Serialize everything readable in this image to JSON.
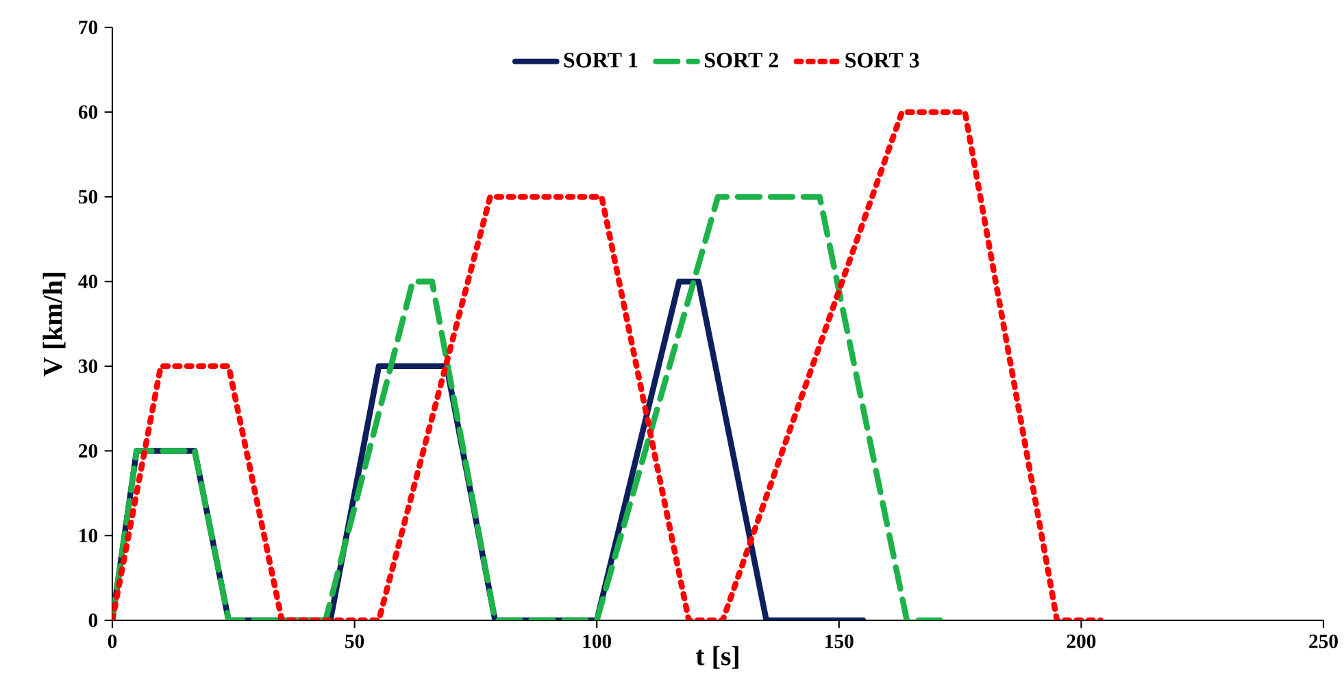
{
  "chart_data": {
    "type": "line",
    "xlabel": "t [s]",
    "ylabel": "V [km/h]",
    "xlim": [
      0,
      250
    ],
    "ylim": [
      0,
      70
    ],
    "xticks": [
      0,
      50,
      100,
      150,
      200,
      250
    ],
    "yticks": [
      0,
      10,
      20,
      30,
      40,
      50,
      60,
      70
    ],
    "grid": false,
    "legend": "top",
    "series": [
      {
        "name": "SORT 1",
        "color": "#0d1f5c",
        "line_style": "solid",
        "x": [
          0,
          5,
          17,
          24,
          45,
          55,
          69,
          79,
          100,
          117,
          121,
          135,
          155
        ],
        "values": [
          0,
          20,
          20,
          0,
          0,
          30,
          30,
          0,
          0,
          40,
          40,
          0,
          0
        ]
      },
      {
        "name": "SORT 2",
        "color": "#1db34a",
        "line_style": "dashed",
        "x": [
          0,
          5,
          17,
          24,
          44,
          62,
          66,
          79,
          100,
          125,
          146,
          164,
          172
        ],
        "values": [
          0,
          20,
          20,
          0,
          0,
          40,
          40,
          0,
          0,
          50,
          50,
          0,
          0
        ]
      },
      {
        "name": "SORT 3",
        "color": "#ff0000",
        "line_style": "dotted",
        "x": [
          0,
          10,
          24,
          35,
          55,
          78,
          101,
          119,
          126,
          163,
          176,
          195,
          204
        ],
        "values": [
          0,
          30,
          30,
          0,
          0,
          50,
          50,
          0,
          0,
          60,
          60,
          0,
          0
        ]
      }
    ]
  }
}
